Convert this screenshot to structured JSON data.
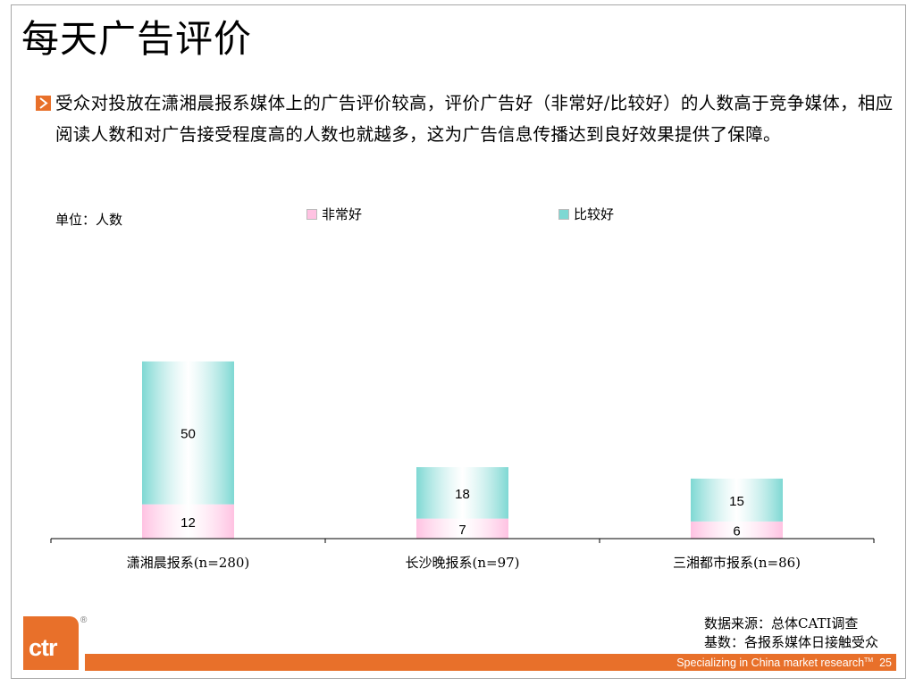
{
  "slide": {
    "title": "每天广告评价",
    "body": "受众对投放在潇湘晨报系媒体上的广告评价较高，评价广告好（非常好/比较好）的人数高于竞争媒体，相应阅读人数和对广告接受程度高的人数也就越多，这为广告信息传播达到良好效果提供了保障。",
    "unit_label": "单位：人数",
    "source_line1": "数据来源：总体CATI调查",
    "source_line2": "基数：各报系媒体日接触受众",
    "footer_text": "Specializing in China market research",
    "footer_tm": "TM",
    "page_number": "25",
    "logo_text": "ctr",
    "logo_mark": "®",
    "colors": {
      "accent": "#e8702a"
    }
  },
  "chart_data": {
    "type": "bar",
    "stacked": true,
    "categories": [
      "潇湘晨报系(n=280)",
      "长沙晚报系(n=97)",
      "三湘都市报系(n=86)"
    ],
    "series": [
      {
        "name": "非常好",
        "values": [
          12,
          7,
          6
        ],
        "color": "#ffc2e2"
      },
      {
        "name": "比较好",
        "values": [
          50,
          18,
          15
        ],
        "color": "#7ed8d3"
      }
    ],
    "ylabel": "单位：人数",
    "ylim": [
      0,
      62
    ],
    "grid": false,
    "legend_position": "top",
    "data_labels": true
  }
}
